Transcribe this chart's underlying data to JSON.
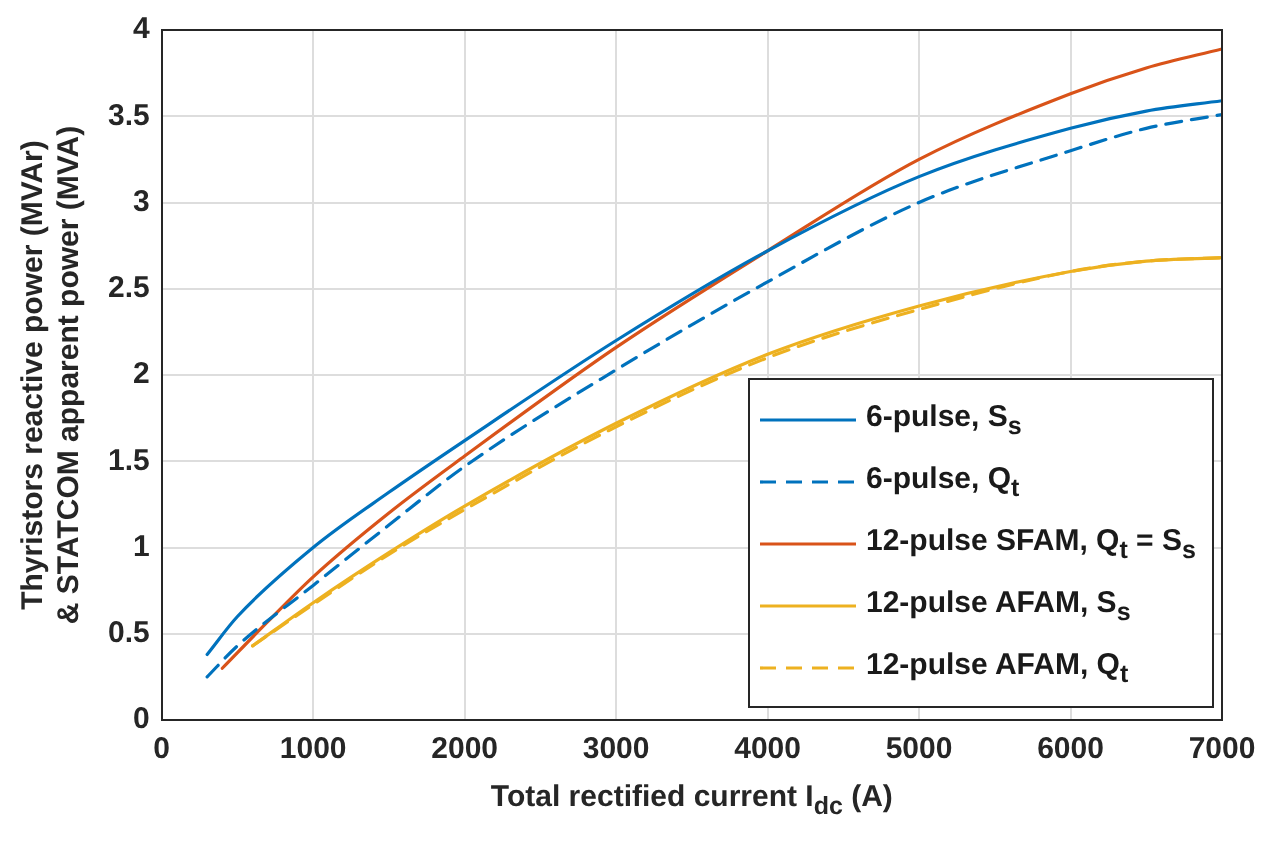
{
  "chart_data": {
    "type": "line",
    "xlabel": "Total rectified current I$_{dc}$ (A)",
    "ylabel": "Thyristors reactive power (MVAr)\n& STATCOM apparent power (MVA)",
    "xlim": [
      0,
      7000
    ],
    "xticks": [
      0,
      1000,
      2000,
      3000,
      4000,
      5000,
      6000,
      7000
    ],
    "ylim": [
      0,
      4
    ],
    "yticks": [
      0,
      0.5,
      1,
      1.5,
      2,
      2.5,
      3,
      3.5,
      4
    ],
    "grid": true,
    "legend": "bottom right",
    "series": [
      {
        "name": "6-pulse, S$_{s}$",
        "color": "#0072bd",
        "line_style": "solid",
        "x": [
          300,
          500,
          1000,
          1500,
          2000,
          3000,
          4000,
          5000,
          6000,
          6500,
          7000
        ],
        "values": [
          0.38,
          0.6,
          1.0,
          1.32,
          1.62,
          2.2,
          2.72,
          3.15,
          3.43,
          3.53,
          3.59
        ]
      },
      {
        "name": "6-pulse, Q$_{t}$",
        "color": "#0072bd",
        "line_style": "dashed",
        "x": [
          300,
          500,
          1000,
          1500,
          2000,
          3000,
          4000,
          5000,
          6000,
          6500,
          7000
        ],
        "values": [
          0.25,
          0.43,
          0.78,
          1.13,
          1.47,
          2.03,
          2.54,
          3.0,
          3.3,
          3.43,
          3.51
        ]
      },
      {
        "name": "12-pulse SFAM, Q$_{t}$ = S$_{s}$",
        "color": "#d95319",
        "line_style": "solid",
        "x": [
          400,
          700,
          1000,
          1500,
          2000,
          3000,
          4000,
          5000,
          6000,
          6500,
          7000
        ],
        "values": [
          0.3,
          0.57,
          0.83,
          1.2,
          1.53,
          2.16,
          2.72,
          3.25,
          3.63,
          3.78,
          3.89
        ]
      },
      {
        "name": "12-pulse AFAM, S$_{s}$",
        "color": "#edb120",
        "line_style": "solid",
        "x": [
          600,
          1000,
          1500,
          2000,
          3000,
          4000,
          5000,
          6000,
          6500,
          7000
        ],
        "values": [
          0.43,
          0.68,
          0.97,
          1.24,
          1.72,
          2.12,
          2.4,
          2.6,
          2.66,
          2.68
        ]
      },
      {
        "name": "12-pulse AFAM, Q$_{t}$",
        "color": "#edb120",
        "line_style": "dashed",
        "x": [
          600,
          1000,
          1500,
          2000,
          3000,
          4000,
          5000,
          6000,
          6500,
          7000
        ],
        "values": [
          0.43,
          0.67,
          0.96,
          1.22,
          1.7,
          2.1,
          2.38,
          2.6,
          2.66,
          2.68
        ]
      }
    ]
  }
}
